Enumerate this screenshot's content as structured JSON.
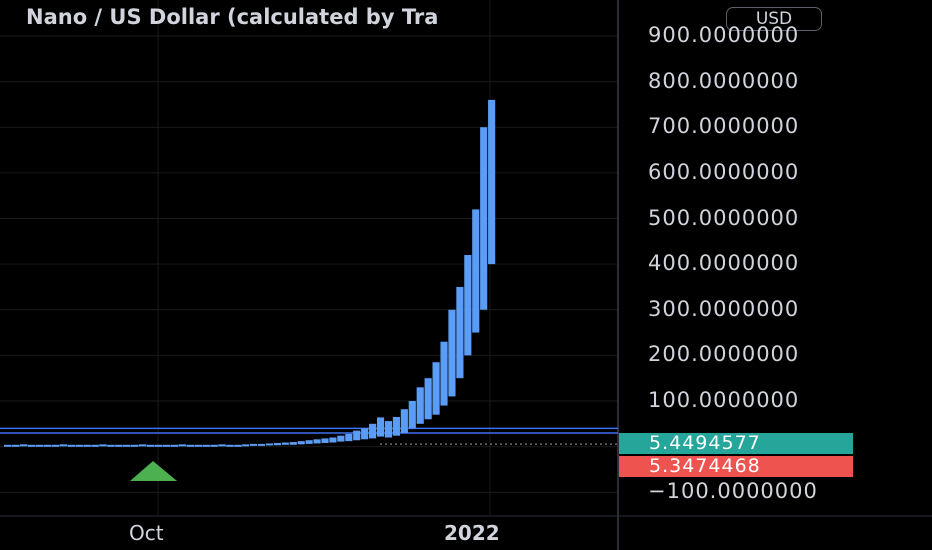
{
  "title": "Nano / US Dollar (calculated by Tra",
  "currency_button": "USD",
  "price_tags": [
    {
      "label": "5.4494577",
      "color": "#26a69a"
    },
    {
      "label": "5.3474468",
      "color": "#ef5350"
    }
  ],
  "colors": {
    "background": "#000000",
    "candle": "#5b9cf6",
    "horizontal_line": "#3d6ff0",
    "grid": "#1a1a1a",
    "marker": "#4caf50"
  },
  "chart_data": {
    "type": "bar",
    "x_ticks": [
      "Oct",
      "2022"
    ],
    "y_ticks": [
      "900.0000000",
      "800.0000000",
      "700.0000000",
      "600.0000000",
      "500.0000000",
      "400.0000000",
      "300.0000000",
      "200.0000000",
      "100.0000000",
      "−100.0000000"
    ],
    "ylim": [
      -120,
      940
    ],
    "grid": true,
    "series": [
      {
        "values": [
          [
            2,
            4
          ],
          [
            2,
            4
          ],
          [
            2,
            5
          ],
          [
            2,
            4
          ],
          [
            2,
            4
          ],
          [
            1,
            4
          ],
          [
            2,
            4
          ],
          [
            2,
            5
          ],
          [
            2,
            4
          ],
          [
            2,
            4
          ],
          [
            1,
            4
          ],
          [
            2,
            4
          ],
          [
            2,
            5
          ],
          [
            2,
            4
          ],
          [
            1,
            4
          ],
          [
            2,
            4
          ],
          [
            2,
            4
          ],
          [
            2,
            5
          ],
          [
            2,
            4
          ],
          [
            1,
            4
          ],
          [
            2,
            4
          ],
          [
            2,
            4
          ],
          [
            2,
            5
          ],
          [
            2,
            4
          ],
          [
            2,
            4
          ],
          [
            1,
            4
          ],
          [
            2,
            4
          ],
          [
            2,
            5
          ],
          [
            2,
            4
          ],
          [
            2,
            4
          ],
          [
            2,
            5
          ],
          [
            2,
            6
          ],
          [
            3,
            6
          ],
          [
            3,
            7
          ],
          [
            3,
            8
          ],
          [
            4,
            9
          ],
          [
            4,
            10
          ],
          [
            5,
            12
          ],
          [
            6,
            14
          ],
          [
            7,
            16
          ],
          [
            8,
            18
          ],
          [
            9,
            20
          ],
          [
            11,
            24
          ],
          [
            12,
            28
          ],
          [
            14,
            35
          ],
          [
            16,
            40
          ],
          [
            18,
            50
          ],
          [
            22,
            64
          ],
          [
            20,
            56
          ],
          [
            24,
            65
          ],
          [
            30,
            82
          ],
          [
            40,
            100
          ],
          [
            50,
            130
          ],
          [
            60,
            150
          ],
          [
            70,
            185
          ],
          [
            90,
            230
          ],
          [
            110,
            300
          ],
          [
            150,
            350
          ],
          [
            200,
            420
          ],
          [
            250,
            520
          ],
          [
            300,
            700
          ],
          [
            400,
            760
          ]
        ]
      }
    ],
    "horizontal_lines": [
      40,
      30
    ],
    "current_price": 5.4494577,
    "marker_at_x": "Oct"
  }
}
